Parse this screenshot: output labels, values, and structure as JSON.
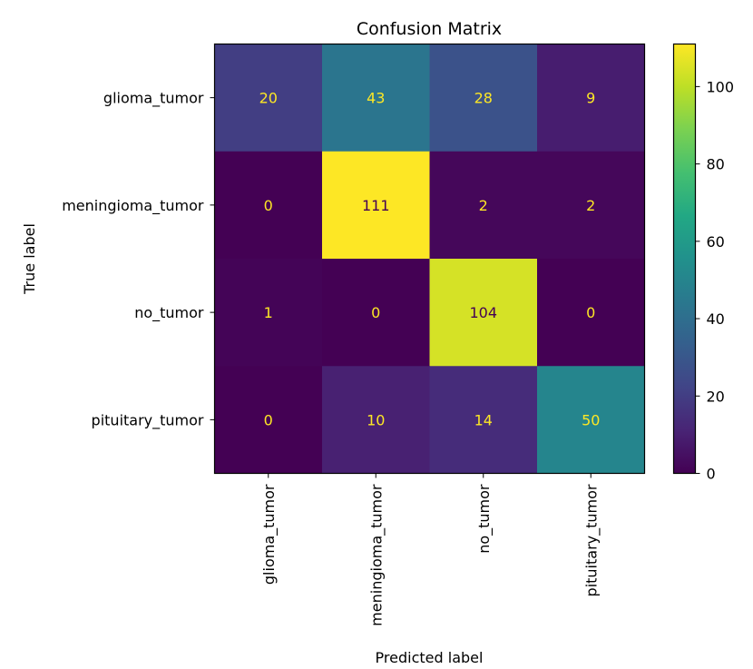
{
  "chart_data": {
    "type": "heatmap",
    "title": "Confusion Matrix",
    "xlabel": "Predicted label",
    "ylabel": "True label",
    "x_categories": [
      "glioma_tumor",
      "meningioma_tumor",
      "no_tumor",
      "pituitary_tumor"
    ],
    "y_categories": [
      "glioma_tumor",
      "meningioma_tumor",
      "no_tumor",
      "pituitary_tumor"
    ],
    "values": [
      [
        20,
        43,
        28,
        9
      ],
      [
        0,
        111,
        2,
        2
      ],
      [
        1,
        0,
        104,
        0
      ],
      [
        0,
        10,
        14,
        50
      ]
    ],
    "colormap": "viridis",
    "color_range": [
      0,
      111
    ],
    "colorbar_ticks": [
      0,
      20,
      40,
      60,
      80,
      100
    ],
    "grid": false
  }
}
